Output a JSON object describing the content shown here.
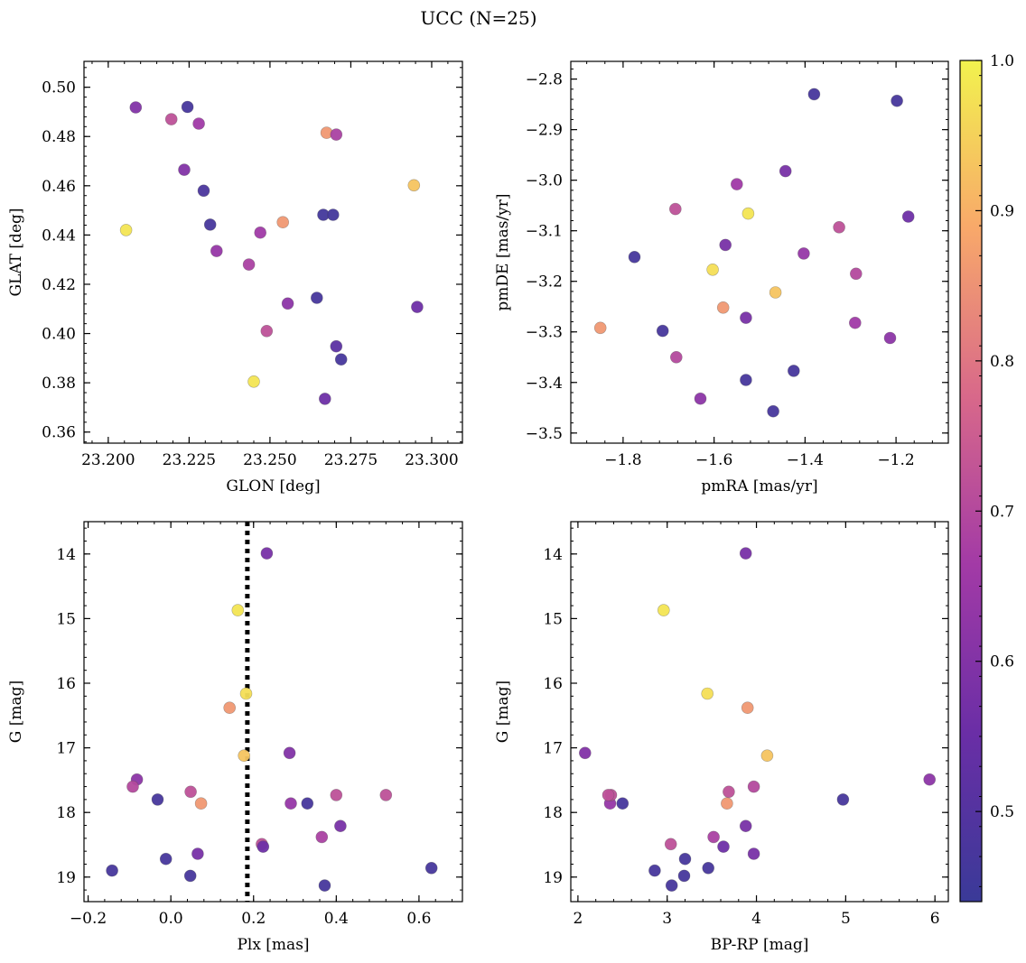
{
  "title": "UCC (N=25)",
  "colorbar": {
    "min": 0.44,
    "max": 1.0,
    "ticks": [
      0.5,
      0.6,
      0.7,
      0.8,
      0.9,
      1.0
    ],
    "tick_labels": [
      "0.5",
      "0.6",
      "0.7",
      "0.8",
      "0.9",
      "1.0"
    ],
    "colormap": "plasma"
  },
  "chart_data": [
    {
      "type": "scatter",
      "xlabel": "GLON [deg]",
      "ylabel": "GLAT [deg]",
      "xlim": [
        23.1925,
        23.3095
      ],
      "ylim": [
        0.3555,
        0.5105
      ],
      "xticks": [
        23.2,
        23.225,
        23.25,
        23.275,
        23.3
      ],
      "xtick_labels": [
        "23.200",
        "23.225",
        "23.250",
        "23.275",
        "23.300"
      ],
      "yticks": [
        0.36,
        0.38,
        0.4,
        0.42,
        0.44,
        0.46,
        0.48,
        0.5
      ],
      "ytick_labels": [
        "0.36",
        "0.38",
        "0.40",
        "0.42",
        "0.44",
        "0.46",
        "0.48",
        "0.50"
      ],
      "y_inverted": false,
      "points": [
        {
          "x": 23.2085,
          "y": 0.4918,
          "c": 0.6
        },
        {
          "x": 23.2195,
          "y": 0.487,
          "c": 0.72
        },
        {
          "x": 23.2245,
          "y": 0.492,
          "c": 0.47
        },
        {
          "x": 23.228,
          "y": 0.4852,
          "c": 0.66
        },
        {
          "x": 23.2675,
          "y": 0.4815,
          "c": 0.86
        },
        {
          "x": 23.2705,
          "y": 0.4808,
          "c": 0.68
        },
        {
          "x": 23.2235,
          "y": 0.4665,
          "c": 0.6
        },
        {
          "x": 23.2295,
          "y": 0.458,
          "c": 0.48
        },
        {
          "x": 23.2945,
          "y": 0.4602,
          "c": 0.93
        },
        {
          "x": 23.2315,
          "y": 0.4442,
          "c": 0.47
        },
        {
          "x": 23.2665,
          "y": 0.4482,
          "c": 0.46
        },
        {
          "x": 23.2695,
          "y": 0.4482,
          "c": 0.46
        },
        {
          "x": 23.254,
          "y": 0.4452,
          "c": 0.86
        },
        {
          "x": 23.2055,
          "y": 0.442,
          "c": 0.98
        },
        {
          "x": 23.2335,
          "y": 0.4335,
          "c": 0.64
        },
        {
          "x": 23.247,
          "y": 0.441,
          "c": 0.66
        },
        {
          "x": 23.2435,
          "y": 0.428,
          "c": 0.68
        },
        {
          "x": 23.2645,
          "y": 0.4145,
          "c": 0.47
        },
        {
          "x": 23.2555,
          "y": 0.4122,
          "c": 0.62
        },
        {
          "x": 23.2955,
          "y": 0.4108,
          "c": 0.56
        },
        {
          "x": 23.249,
          "y": 0.401,
          "c": 0.72
        },
        {
          "x": 23.2705,
          "y": 0.3948,
          "c": 0.52
        },
        {
          "x": 23.272,
          "y": 0.3895,
          "c": 0.47
        },
        {
          "x": 23.245,
          "y": 0.3805,
          "c": 0.98
        },
        {
          "x": 23.267,
          "y": 0.3735,
          "c": 0.56
        }
      ]
    },
    {
      "type": "scatter",
      "xlabel": "pmRA [mas/yr]",
      "ylabel": "pmDE [mas/yr]",
      "xlim": [
        -1.915,
        -1.085
      ],
      "ylim": [
        -3.52,
        -2.765
      ],
      "xticks": [
        -1.8,
        -1.6,
        -1.4,
        -1.2
      ],
      "xtick_labels": [
        "−1.8",
        "−1.6",
        "−1.4",
        "−1.2"
      ],
      "yticks": [
        -3.5,
        -3.4,
        -3.3,
        -3.2,
        -3.1,
        -3.0,
        -2.9,
        -2.8
      ],
      "ytick_labels": [
        "−3.5",
        "−3.4",
        "−3.3",
        "−3.2",
        "−3.1",
        "−3.0",
        "−2.9",
        "−2.8"
      ],
      "y_inverted": false,
      "points": [
        {
          "x": -1.38,
          "y": -2.83,
          "c": 0.47
        },
        {
          "x": -1.198,
          "y": -2.843,
          "c": 0.47
        },
        {
          "x": -1.443,
          "y": -2.982,
          "c": 0.58
        },
        {
          "x": -1.55,
          "y": -3.008,
          "c": 0.66
        },
        {
          "x": -1.685,
          "y": -3.057,
          "c": 0.72
        },
        {
          "x": -1.525,
          "y": -3.066,
          "c": 0.98
        },
        {
          "x": -1.173,
          "y": -3.072,
          "c": 0.56
        },
        {
          "x": -1.325,
          "y": -3.093,
          "c": 0.72
        },
        {
          "x": -1.575,
          "y": -3.128,
          "c": 0.58
        },
        {
          "x": -1.403,
          "y": -3.145,
          "c": 0.64
        },
        {
          "x": -1.775,
          "y": -3.152,
          "c": 0.47
        },
        {
          "x": -1.603,
          "y": -3.177,
          "c": 0.97
        },
        {
          "x": -1.288,
          "y": -3.185,
          "c": 0.7
        },
        {
          "x": -1.465,
          "y": -3.222,
          "c": 0.93
        },
        {
          "x": -1.58,
          "y": -3.252,
          "c": 0.86
        },
        {
          "x": -1.53,
          "y": -3.272,
          "c": 0.58
        },
        {
          "x": -1.29,
          "y": -3.282,
          "c": 0.66
        },
        {
          "x": -1.85,
          "y": -3.292,
          "c": 0.86
        },
        {
          "x": -1.713,
          "y": -3.298,
          "c": 0.47
        },
        {
          "x": -1.213,
          "y": -3.312,
          "c": 0.62
        },
        {
          "x": -1.683,
          "y": -3.35,
          "c": 0.7
        },
        {
          "x": -1.425,
          "y": -3.377,
          "c": 0.47
        },
        {
          "x": -1.53,
          "y": -3.395,
          "c": 0.47
        },
        {
          "x": -1.63,
          "y": -3.432,
          "c": 0.62
        },
        {
          "x": -1.47,
          "y": -3.457,
          "c": 0.47
        }
      ]
    },
    {
      "type": "scatter",
      "xlabel": "Plx [mas]",
      "ylabel": "G [mag]",
      "xlim": [
        -0.21,
        0.705
      ],
      "ylim": [
        13.5,
        19.38
      ],
      "xticks": [
        -0.2,
        0.0,
        0.2,
        0.4,
        0.6
      ],
      "xtick_labels": [
        "−0.2",
        "0.0",
        "0.2",
        "0.4",
        "0.6"
      ],
      "yticks": [
        14,
        15,
        16,
        17,
        18,
        19
      ],
      "ytick_labels": [
        "14",
        "15",
        "16",
        "17",
        "18",
        "19"
      ],
      "y_inverted": true,
      "vline": {
        "x": 0.185,
        "style": "dotted"
      },
      "points": [
        {
          "x": 0.232,
          "y": 13.99,
          "c": 0.58
        },
        {
          "x": 0.162,
          "y": 14.87,
          "c": 0.98
        },
        {
          "x": 0.182,
          "y": 16.16,
          "c": 0.97
        },
        {
          "x": 0.142,
          "y": 16.38,
          "c": 0.86
        },
        {
          "x": 0.177,
          "y": 17.12,
          "c": 0.93
        },
        {
          "x": 0.287,
          "y": 17.08,
          "c": 0.6
        },
        {
          "x": -0.082,
          "y": 17.49,
          "c": 0.62
        },
        {
          "x": -0.092,
          "y": 17.6,
          "c": 0.7
        },
        {
          "x": -0.032,
          "y": 17.8,
          "c": 0.47
        },
        {
          "x": 0.048,
          "y": 17.68,
          "c": 0.72
        },
        {
          "x": 0.073,
          "y": 17.86,
          "c": 0.86
        },
        {
          "x": 0.29,
          "y": 17.86,
          "c": 0.64
        },
        {
          "x": 0.33,
          "y": 17.86,
          "c": 0.47
        },
        {
          "x": 0.4,
          "y": 17.73,
          "c": 0.72
        },
        {
          "x": 0.52,
          "y": 17.73,
          "c": 0.72
        },
        {
          "x": 0.41,
          "y": 18.21,
          "c": 0.58
        },
        {
          "x": 0.365,
          "y": 18.38,
          "c": 0.68
        },
        {
          "x": 0.22,
          "y": 18.49,
          "c": 0.72
        },
        {
          "x": 0.223,
          "y": 18.53,
          "c": 0.56
        },
        {
          "x": 0.065,
          "y": 18.64,
          "c": 0.58
        },
        {
          "x": -0.012,
          "y": 18.72,
          "c": 0.47
        },
        {
          "x": -0.142,
          "y": 18.9,
          "c": 0.47
        },
        {
          "x": 0.047,
          "y": 18.98,
          "c": 0.47
        },
        {
          "x": 0.63,
          "y": 18.86,
          "c": 0.47
        },
        {
          "x": 0.372,
          "y": 19.13,
          "c": 0.47
        }
      ]
    },
    {
      "type": "scatter",
      "xlabel": "BP-RP [mag]",
      "ylabel": "G [mag]",
      "xlim": [
        1.92,
        6.15
      ],
      "ylim": [
        13.5,
        19.38
      ],
      "xticks": [
        2,
        3,
        4,
        5,
        6
      ],
      "xtick_labels": [
        "2",
        "3",
        "4",
        "5",
        "6"
      ],
      "yticks": [
        14,
        15,
        16,
        17,
        18,
        19
      ],
      "ytick_labels": [
        "14",
        "15",
        "16",
        "17",
        "18",
        "19"
      ],
      "y_inverted": true,
      "points": [
        {
          "x": 3.88,
          "y": 13.99,
          "c": 0.58
        },
        {
          "x": 2.96,
          "y": 14.87,
          "c": 0.98
        },
        {
          "x": 3.45,
          "y": 16.16,
          "c": 0.97
        },
        {
          "x": 3.9,
          "y": 16.38,
          "c": 0.86
        },
        {
          "x": 4.12,
          "y": 17.12,
          "c": 0.93
        },
        {
          "x": 2.08,
          "y": 17.08,
          "c": 0.6
        },
        {
          "x": 5.94,
          "y": 17.49,
          "c": 0.62
        },
        {
          "x": 3.97,
          "y": 17.6,
          "c": 0.7
        },
        {
          "x": 4.97,
          "y": 17.8,
          "c": 0.47
        },
        {
          "x": 3.69,
          "y": 17.68,
          "c": 0.72
        },
        {
          "x": 3.67,
          "y": 17.86,
          "c": 0.86
        },
        {
          "x": 2.36,
          "y": 17.86,
          "c": 0.64
        },
        {
          "x": 2.5,
          "y": 17.86,
          "c": 0.47
        },
        {
          "x": 2.37,
          "y": 17.73,
          "c": 0.72
        },
        {
          "x": 2.34,
          "y": 17.73,
          "c": 0.72
        },
        {
          "x": 3.88,
          "y": 18.21,
          "c": 0.58
        },
        {
          "x": 3.52,
          "y": 18.38,
          "c": 0.68
        },
        {
          "x": 3.04,
          "y": 18.49,
          "c": 0.72
        },
        {
          "x": 3.63,
          "y": 18.53,
          "c": 0.56
        },
        {
          "x": 3.97,
          "y": 18.64,
          "c": 0.58
        },
        {
          "x": 3.2,
          "y": 18.72,
          "c": 0.47
        },
        {
          "x": 2.86,
          "y": 18.9,
          "c": 0.47
        },
        {
          "x": 3.19,
          "y": 18.98,
          "c": 0.47
        },
        {
          "x": 3.46,
          "y": 18.86,
          "c": 0.47
        },
        {
          "x": 3.05,
          "y": 19.13,
          "c": 0.47
        }
      ]
    }
  ]
}
